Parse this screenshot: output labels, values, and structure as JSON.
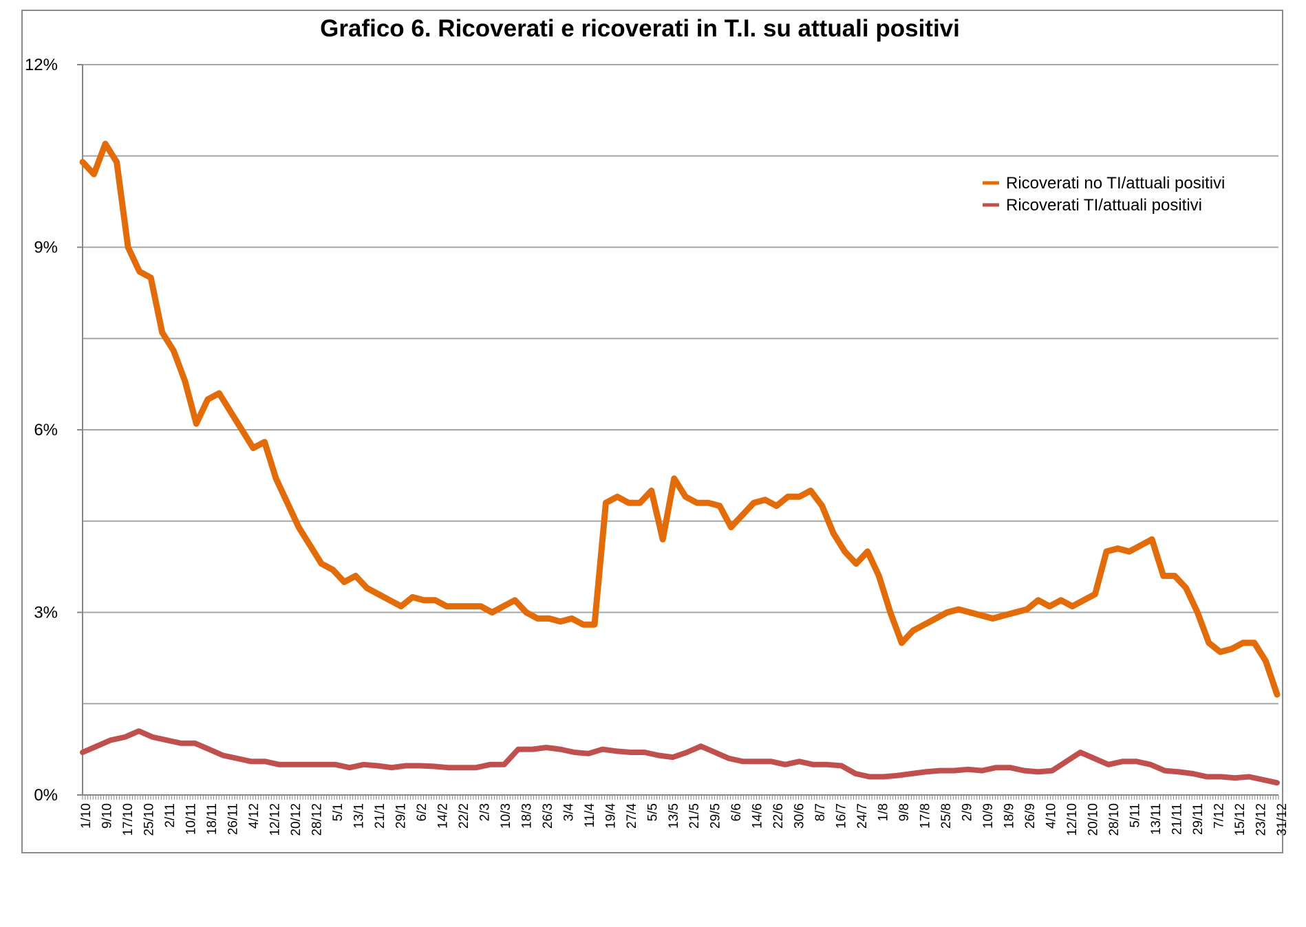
{
  "chart_data": {
    "type": "line",
    "title": "Grafico 6. Ricoverati e ricoverati in T.I. su attuali positivi",
    "xlabel": "",
    "ylabel": "",
    "ylim": [
      0,
      12
    ],
    "yticks": [
      "0%",
      "3%",
      "6%",
      "9%",
      "12%"
    ],
    "y_gridlines": [
      1.5,
      3,
      4.5,
      6,
      7.5,
      9,
      10.5,
      12
    ],
    "grid": true,
    "legend_position": "top-right",
    "x_tick_labels": [
      "1/10",
      "9/10",
      "17/10",
      "25/10",
      "2/11",
      "10/11",
      "18/11",
      "26/11",
      "4/12",
      "12/12",
      "20/12",
      "28/12",
      "5/1",
      "13/1",
      "21/1",
      "29/1",
      "6/2",
      "14/2",
      "22/2",
      "2/3",
      "10/3",
      "18/3",
      "26/3",
      "3/4",
      "11/4",
      "19/4",
      "27/4",
      "5/5",
      "13/5",
      "21/5",
      "29/5",
      "6/6",
      "14/6",
      "22/6",
      "30/6",
      "8/7",
      "16/7",
      "24/7",
      "1/8",
      "9/8",
      "17/8",
      "25/8",
      "2/9",
      "10/9",
      "18/9",
      "26/9",
      "4/10",
      "12/10",
      "20/10",
      "28/10",
      "5/11",
      "13/11",
      "21/11",
      "29/11",
      "7/12",
      "15/12",
      "23/12",
      "31/12"
    ],
    "series": [
      {
        "name": "Ricoverati no TI/attuali positivi",
        "color": "#E36C0A",
        "values": [
          10.4,
          10.2,
          10.7,
          10.4,
          9.0,
          8.6,
          8.5,
          7.6,
          7.3,
          6.8,
          6.1,
          6.5,
          6.6,
          6.3,
          6.0,
          5.7,
          5.8,
          5.2,
          4.8,
          4.4,
          4.1,
          3.8,
          3.7,
          3.5,
          3.6,
          3.4,
          3.3,
          3.2,
          3.1,
          3.25,
          3.2,
          3.2,
          3.1,
          3.1,
          3.1,
          3.1,
          3.0,
          3.1,
          3.2,
          3.0,
          2.9,
          2.9,
          2.85,
          2.9,
          2.8,
          2.8,
          4.8,
          4.9,
          4.8,
          4.8,
          5.0,
          4.2,
          5.2,
          4.9,
          4.8,
          4.8,
          4.75,
          4.4,
          4.6,
          4.8,
          4.85,
          4.75,
          4.9,
          4.9,
          5.0,
          4.75,
          4.3,
          4.0,
          3.8,
          4.0,
          3.6,
          3.0,
          2.5,
          2.7,
          2.8,
          2.9,
          3.0,
          3.05,
          3.0,
          2.95,
          2.9,
          2.95,
          3.0,
          3.05,
          3.2,
          3.1,
          3.2,
          3.1,
          3.2,
          3.3,
          4.0,
          4.05,
          4.0,
          4.1,
          4.2,
          3.6,
          3.6,
          3.4,
          3.0,
          2.5,
          2.35,
          2.4,
          2.5,
          2.5,
          2.2,
          1.65
        ]
      },
      {
        "name": "Ricoverati TI/attuali positivi",
        "color": "#C0504D",
        "values": [
          0.7,
          0.8,
          0.9,
          0.95,
          1.05,
          0.95,
          0.9,
          0.85,
          0.85,
          0.75,
          0.65,
          0.6,
          0.55,
          0.55,
          0.5,
          0.5,
          0.5,
          0.5,
          0.5,
          0.45,
          0.5,
          0.48,
          0.45,
          0.48,
          0.48,
          0.47,
          0.45,
          0.45,
          0.45,
          0.5,
          0.5,
          0.75,
          0.75,
          0.78,
          0.75,
          0.7,
          0.68,
          0.75,
          0.72,
          0.7,
          0.7,
          0.65,
          0.62,
          0.7,
          0.8,
          0.7,
          0.6,
          0.55,
          0.55,
          0.55,
          0.5,
          0.55,
          0.5,
          0.5,
          0.48,
          0.35,
          0.3,
          0.3,
          0.32,
          0.35,
          0.38,
          0.4,
          0.4,
          0.42,
          0.4,
          0.45,
          0.45,
          0.4,
          0.38,
          0.4,
          0.55,
          0.7,
          0.6,
          0.5,
          0.55,
          0.55,
          0.5,
          0.4,
          0.38,
          0.35,
          0.3,
          0.3,
          0.28,
          0.3,
          0.25,
          0.2
        ]
      }
    ]
  }
}
